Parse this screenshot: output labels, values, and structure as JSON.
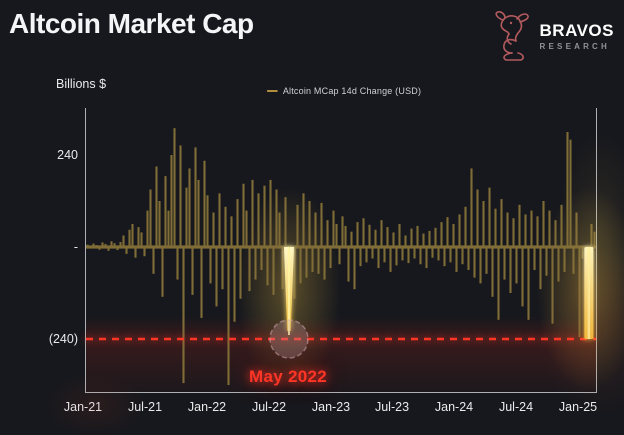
{
  "header": {
    "title": "Altcoin Market Cap"
  },
  "brand": {
    "name": "BRAVOS",
    "subtitle": "RESEARCH",
    "accent": "#b25a5e"
  },
  "chart_data": {
    "type": "bar",
    "title": "Altcoin Market Cap",
    "unit_label": "Billions $",
    "legend": {
      "label": "Altcoin MCap 14d Change (USD)",
      "color": "#b08d3e",
      "position": "top"
    },
    "x_ticks": [
      "Jan-21",
      "Jul-21",
      "Jan-22",
      "Jul-22",
      "Jan-23",
      "Jul-23",
      "Jan-24",
      "Jul-24",
      "Jan-25"
    ],
    "y_ticks": [
      {
        "value": 240,
        "label": "240"
      },
      {
        "value": 0,
        "label": "-"
      },
      {
        "value": -240,
        "label": "(240)"
      }
    ],
    "ylim": [
      -370,
      365
    ],
    "grid": false,
    "bar_color": "#7f6c36",
    "zero_band": true,
    "background": "#17181d",
    "threshold_line": {
      "value": -240,
      "color": "#ff3526",
      "style": "dashed"
    },
    "annotation": {
      "label": "May 2022",
      "color": "#ff3526"
    },
    "highlight_color": "#ffd84d",
    "highlights": [
      {
        "x_frac": 0.398,
        "value": -240,
        "taper": true,
        "circle": true
      },
      {
        "x_frac": 0.986,
        "value": -240,
        "taper": false,
        "circle": false
      }
    ],
    "values": [
      6,
      -4,
      9,
      5,
      -7,
      12,
      8,
      -10,
      15,
      10,
      -8,
      13,
      30,
      -18,
      45,
      60,
      -28,
      52,
      38,
      -24,
      95,
      150,
      -70,
      210,
      120,
      -130,
      185,
      95,
      240,
      310,
      -85,
      265,
      -355,
      155,
      205,
      -125,
      260,
      175,
      -185,
      225,
      135,
      -95,
      90,
      -155,
      140,
      -110,
      105,
      -360,
      80,
      -195,
      125,
      -135,
      165,
      95,
      -115,
      175,
      -85,
      140,
      -60,
      160,
      -100,
      175,
      -125,
      150,
      90,
      -110,
      130,
      -40,
      -35,
      -135,
      110,
      -95,
      140,
      -80,
      120,
      -65,
      90,
      -70,
      115,
      -85,
      70,
      -55,
      95,
      60,
      -45,
      80,
      55,
      -90,
      40,
      -110,
      65,
      -50,
      75,
      -40,
      58,
      -30,
      45,
      -55,
      70,
      -40,
      52,
      -65,
      38,
      -48,
      60,
      -35,
      30,
      -42,
      48,
      -30,
      55,
      -45,
      35,
      -55,
      42,
      -28,
      50,
      -35,
      65,
      -50,
      78,
      -40,
      60,
      -65,
      85,
      -45,
      105,
      -60,
      205,
      -80,
      150,
      -95,
      120,
      -70,
      155,
      -130,
      100,
      -190,
      125,
      -85,
      90,
      -120,
      75,
      -95,
      110,
      -155,
      85,
      -190,
      95,
      -60,
      80,
      -110,
      120,
      -75,
      95,
      -200,
      70,
      -90,
      110,
      -65,
      300,
      280,
      -70,
      90,
      -235,
      -30,
      -25,
      -20,
      60,
      40
    ]
  }
}
